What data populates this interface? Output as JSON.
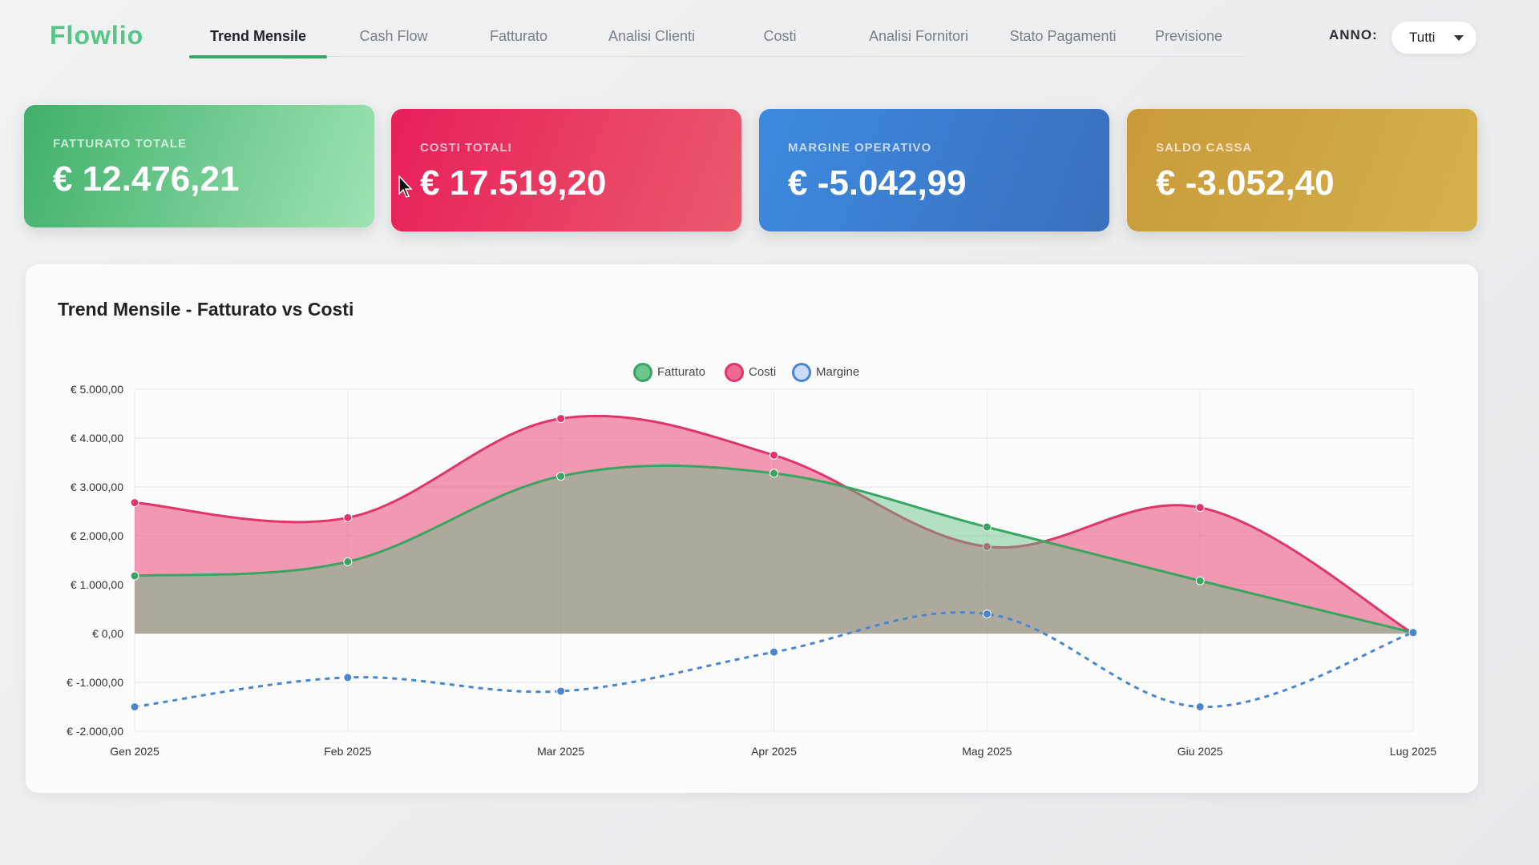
{
  "app": {
    "logo": "Flowlio"
  },
  "nav": {
    "tabs": [
      {
        "label": "Trend Mensile",
        "active": true
      },
      {
        "label": "Cash Flow",
        "active": false
      },
      {
        "label": "Fatturato",
        "active": false
      },
      {
        "label": "Analisi Clienti",
        "active": false
      },
      {
        "label": "Costi",
        "active": false
      },
      {
        "label": "Analisi Fornitori",
        "active": false
      },
      {
        "label": "Stato Pagamenti",
        "active": false
      },
      {
        "label": "Previsione",
        "active": false
      }
    ]
  },
  "filter": {
    "label": "ANNO:",
    "value": "Tutti"
  },
  "kpis": [
    {
      "label": "FATTURATO TOTALE",
      "value": "€ 12.476,21",
      "color": "#3fb06a"
    },
    {
      "label": "COSTI TOTALI",
      "value": "€ 17.519,20",
      "color": "#e81e5a"
    },
    {
      "label": "MARGINE OPERATIVO",
      "value": "€ -5.042,99",
      "color": "#3c8ae0"
    },
    {
      "label": "SALDO CASSA",
      "value": "€ -3.052,40",
      "color": "#c99a3a"
    }
  ],
  "chart_panel": {
    "title": "Trend Mensile - Fatturato vs Costi"
  },
  "chart_data": {
    "type": "area",
    "title": "Trend Mensile - Fatturato vs Costi",
    "categories": [
      "Gen 2025",
      "Feb 2025",
      "Mar 2025",
      "Apr 2025",
      "Mag 2025",
      "Giu 2025",
      "Lug 2025"
    ],
    "series": [
      {
        "name": "Fatturato",
        "values": [
          1180,
          1470,
          3220,
          3280,
          2180,
          1080,
          20
        ],
        "color": "#3aa562",
        "style": "solid-area"
      },
      {
        "name": "Costi",
        "values": [
          2680,
          2370,
          4400,
          3650,
          1780,
          2580,
          0
        ],
        "color": "#e0356b",
        "style": "solid-area"
      },
      {
        "name": "Margine",
        "values": [
          -1500,
          -900,
          -1180,
          -380,
          400,
          -1500,
          20
        ],
        "color": "#4a86cf",
        "style": "dashed"
      }
    ],
    "ylim": [
      -2000,
      5000
    ],
    "y_ticks": [
      {
        "value": 5000,
        "label": "€ 5.000,00"
      },
      {
        "value": 4000,
        "label": "€ 4.000,00"
      },
      {
        "value": 3000,
        "label": "€ 3.000,00"
      },
      {
        "value": 2000,
        "label": "€ 2.000,00"
      },
      {
        "value": 1000,
        "label": "€ 1.000,00"
      },
      {
        "value": 0,
        "label": "€ 0,00"
      },
      {
        "value": -1000,
        "label": "€ -1.000,00"
      },
      {
        "value": -2000,
        "label": "€ -2.000,00"
      }
    ],
    "grid": true,
    "legend": "top-center"
  }
}
